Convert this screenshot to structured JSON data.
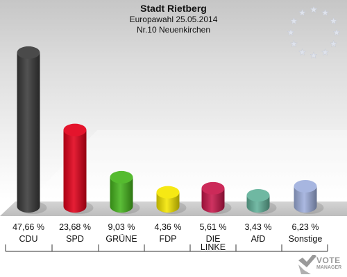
{
  "header": {
    "title": "Stadt Rietberg",
    "subtitle1": "Europawahl 25.05.2014",
    "subtitle2": "Nr.10 Neuenkirchen"
  },
  "watermark": {
    "line1": "VOTE",
    "line2": "MANAGER"
  },
  "chart_data": {
    "type": "bar",
    "title": "Stadt Rietberg",
    "subtitle": [
      "Europawahl 25.05.2014",
      "Nr.10 Neuenkirchen"
    ],
    "xlabel": "",
    "ylabel": "",
    "ylim": [
      0,
      50
    ],
    "grid": false,
    "legend": "none",
    "categories": [
      "CDU",
      "SPD",
      "GRÜNE",
      "FDP",
      "DIE LINKE",
      "AfD",
      "Sonstige"
    ],
    "values": [
      47.66,
      23.68,
      9.03,
      4.36,
      5.61,
      3.43,
      6.23
    ],
    "value_labels": [
      "47,66 %",
      "23,68 %",
      "9,03 %",
      "4,36 %",
      "5,61 %",
      "3,43 %",
      "6,23 %"
    ],
    "colors": [
      "#3a3a3a",
      "#e2001a",
      "#46b51d",
      "#f5e600",
      "#c8174b",
      "#62b29a",
      "#9fb0dd"
    ]
  }
}
